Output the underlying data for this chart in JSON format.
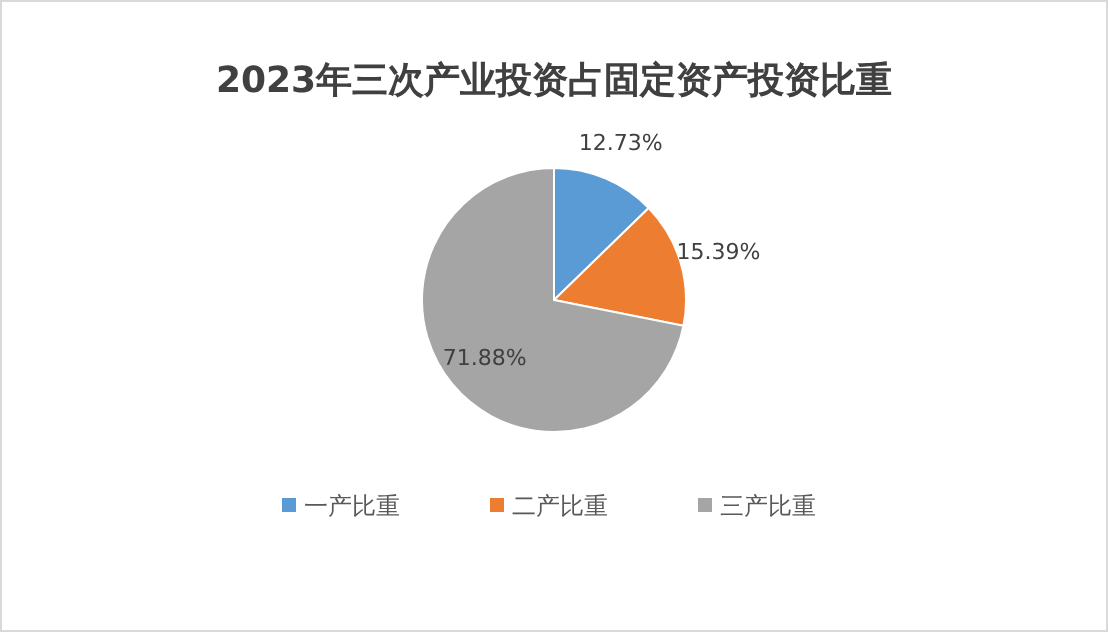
{
  "chart_data": {
    "type": "pie",
    "title": "2023年三次产业投资占固定资产投资比重",
    "categories": [
      "一产比重",
      "二产比重",
      "三产比重"
    ],
    "values": [
      12.73,
      15.39,
      71.88
    ],
    "colors": [
      "#5b9bd5",
      "#ed7d31",
      "#a5a5a5"
    ],
    "value_labels": [
      "12.73%",
      "15.39%",
      "71.88%"
    ],
    "legend": "bottom"
  }
}
